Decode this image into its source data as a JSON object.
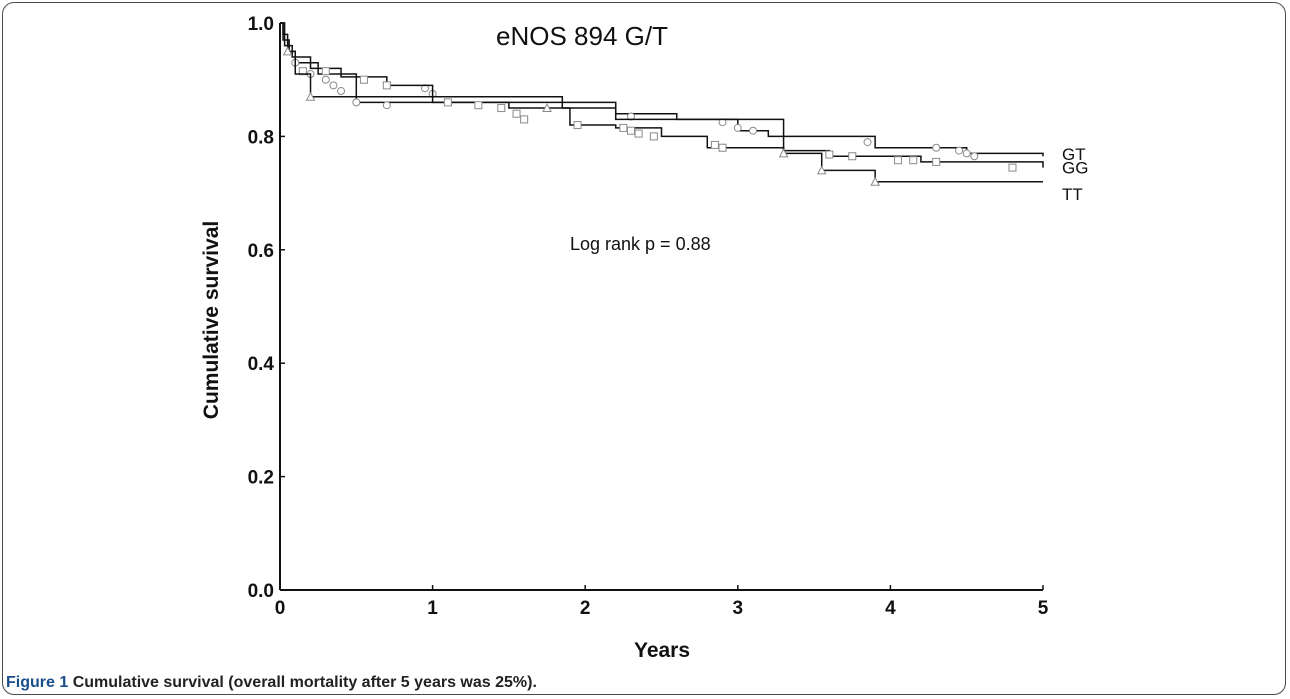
{
  "chart_data": {
    "type": "line",
    "title": "eNOS 894 G/T",
    "xlabel": "Years",
    "ylabel": "Cumulative  survival",
    "xlim": [
      0,
      5
    ],
    "ylim": [
      0,
      1
    ],
    "x_ticks": [
      "0",
      "1",
      "2",
      "3",
      "4",
      "5"
    ],
    "y_ticks": [
      "0.0",
      "0.2",
      "0.4",
      "0.6",
      "0.8",
      "1.0"
    ],
    "grid": false,
    "annotation": "Log rank p = 0.88",
    "series": [
      {
        "name": "GT",
        "marker": "circle",
        "steps": [
          [
            0,
            1.0
          ],
          [
            0.02,
            0.97
          ],
          [
            0.06,
            0.95
          ],
          [
            0.1,
            0.93
          ],
          [
            0.25,
            0.91
          ],
          [
            0.5,
            0.86
          ],
          [
            1.82,
            0.86
          ],
          [
            2.2,
            0.84
          ],
          [
            2.6,
            0.83
          ],
          [
            3.0,
            0.81
          ],
          [
            3.2,
            0.8
          ],
          [
            3.9,
            0.78
          ],
          [
            4.5,
            0.77
          ],
          [
            5.0,
            0.765
          ]
        ],
        "censored": [
          [
            0.1,
            0.93
          ],
          [
            0.2,
            0.91
          ],
          [
            0.3,
            0.9
          ],
          [
            0.35,
            0.89
          ],
          [
            0.4,
            0.88
          ],
          [
            0.5,
            0.86
          ],
          [
            0.7,
            0.855
          ],
          [
            0.95,
            0.885
          ],
          [
            1.0,
            0.875
          ],
          [
            2.3,
            0.835
          ],
          [
            2.9,
            0.825
          ],
          [
            3.0,
            0.815
          ],
          [
            3.1,
            0.81
          ],
          [
            3.85,
            0.79
          ],
          [
            4.3,
            0.78
          ],
          [
            4.45,
            0.775
          ],
          [
            4.5,
            0.77
          ],
          [
            4.55,
            0.765
          ]
        ]
      },
      {
        "name": "GG",
        "marker": "square",
        "steps": [
          [
            0,
            1.0
          ],
          [
            0.03,
            0.96
          ],
          [
            0.08,
            0.94
          ],
          [
            0.2,
            0.92
          ],
          [
            0.4,
            0.905
          ],
          [
            0.7,
            0.89
          ],
          [
            1.0,
            0.86
          ],
          [
            1.5,
            0.85
          ],
          [
            1.9,
            0.82
          ],
          [
            2.2,
            0.815
          ],
          [
            2.5,
            0.8
          ],
          [
            2.8,
            0.78
          ],
          [
            3.3,
            0.775
          ],
          [
            3.6,
            0.765
          ],
          [
            4.2,
            0.755
          ],
          [
            5.0,
            0.745
          ]
        ],
        "censored": [
          [
            0.15,
            0.915
          ],
          [
            0.3,
            0.915
          ],
          [
            0.55,
            0.9
          ],
          [
            0.7,
            0.89
          ],
          [
            1.1,
            0.86
          ],
          [
            1.3,
            0.855
          ],
          [
            1.45,
            0.85
          ],
          [
            1.55,
            0.84
          ],
          [
            1.6,
            0.83
          ],
          [
            1.95,
            0.82
          ],
          [
            2.25,
            0.815
          ],
          [
            2.3,
            0.81
          ],
          [
            2.35,
            0.805
          ],
          [
            2.45,
            0.8
          ],
          [
            2.85,
            0.785
          ],
          [
            2.9,
            0.78
          ],
          [
            3.6,
            0.768
          ],
          [
            3.75,
            0.765
          ],
          [
            4.05,
            0.758
          ],
          [
            4.15,
            0.758
          ],
          [
            4.3,
            0.755
          ],
          [
            4.8,
            0.745
          ]
        ]
      },
      {
        "name": "TT",
        "marker": "triangle",
        "steps": [
          [
            0,
            1.0
          ],
          [
            0.02,
            0.98
          ],
          [
            0.05,
            0.95
          ],
          [
            0.1,
            0.91
          ],
          [
            0.2,
            0.87
          ],
          [
            1.0,
            0.87
          ],
          [
            1.85,
            0.85
          ],
          [
            2.2,
            0.83
          ],
          [
            3.3,
            0.77
          ],
          [
            3.55,
            0.74
          ],
          [
            3.9,
            0.72
          ],
          [
            5.0,
            0.72
          ]
        ],
        "censored": [
          [
            0.05,
            0.95
          ],
          [
            0.2,
            0.87
          ],
          [
            1.75,
            0.85
          ],
          [
            3.3,
            0.77
          ],
          [
            3.55,
            0.74
          ],
          [
            3.9,
            0.72
          ]
        ]
      }
    ]
  },
  "caption": {
    "figure_label": "Figure 1",
    "text": "Cumulative survival (overall mortality after 5 years was 25%)."
  },
  "colors": {
    "line": "#111111",
    "marker_fill": "#ffffff",
    "marker_stroke": "#8a8a8a",
    "caption_label": "#1a4f8a"
  }
}
